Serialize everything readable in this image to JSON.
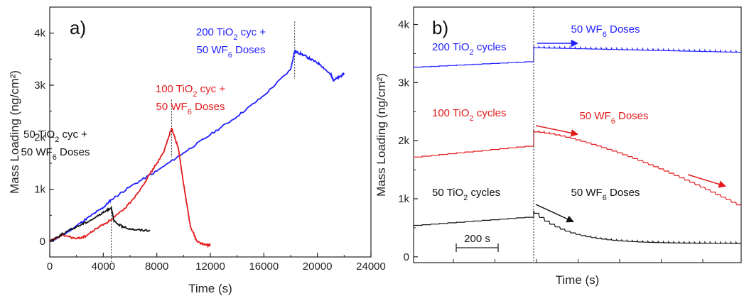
{
  "chart_data": [
    {
      "type": "line",
      "panel_label": "a)",
      "xlabel": "Time (s)",
      "ylabel": "Mass Loading (ng/cm²)",
      "xlim": [
        0,
        24000
      ],
      "ylim": [
        -300,
        4500
      ],
      "x_ticks": [
        0,
        4000,
        8000,
        12000,
        16000,
        20000,
        24000
      ],
      "x_tick_labels": [
        "0",
        "4000",
        "8000",
        "12000",
        "16000",
        "20000",
        "24000"
      ],
      "y_ticks": [
        0,
        1000,
        2000,
        3000,
        4000
      ],
      "y_tick_labels": [
        "0",
        "1k",
        "2k",
        "3k",
        "4k"
      ],
      "series": [
        {
          "color": "#1f1fff",
          "x": [
            0,
            1000,
            2000,
            3000,
            4000,
            4600,
            6000,
            8000,
            10000,
            12000,
            14000,
            16000,
            18000,
            18300,
            18800,
            19500,
            20200,
            21000,
            21200,
            21600,
            22000
          ],
          "y": [
            0,
            120,
            300,
            480,
            650,
            800,
            1050,
            1350,
            1700,
            2050,
            2400,
            2800,
            3300,
            3650,
            3600,
            3500,
            3400,
            3200,
            3100,
            3150,
            3220
          ]
        },
        {
          "color": "#e31a1c",
          "x": [
            0,
            1000,
            2000,
            2700,
            3500,
            4500,
            5500,
            6500,
            7500,
            8500,
            9100,
            9600,
            10000,
            10500,
            11000,
            11500,
            12000
          ],
          "y": [
            0,
            120,
            50,
            100,
            250,
            400,
            600,
            900,
            1300,
            1700,
            2180,
            1800,
            1100,
            300,
            0,
            -60,
            -80
          ]
        },
        {
          "color": "#111111",
          "x": [
            0,
            1000,
            2000,
            3000,
            4000,
            4600,
            4800,
            5500,
            6500,
            7500
          ],
          "y": [
            0,
            150,
            280,
            400,
            550,
            650,
            380,
            270,
            220,
            210
          ]
        }
      ],
      "vlines": [
        4600,
        9100,
        18300
      ],
      "annotations": [
        {
          "lines": [
            "200 TiO₂ cyc +",
            "50 WF₆ Doses"
          ],
          "color": "#1f1fff"
        },
        {
          "lines": [
            "100 TiO₂ cyc +",
            "50 WF₆ Doses"
          ],
          "color": "#e31a1c"
        },
        {
          "lines": [
            "50 TiO₂ cyc +",
            "50 WF₆ Doses"
          ],
          "color": "#111111"
        }
      ]
    },
    {
      "type": "line",
      "panel_label": "b)",
      "xlabel": "Time (s)",
      "ylabel": "Mass Loading (ng/cm²)",
      "ylim": [
        -100,
        4300
      ],
      "y_ticks": [
        0,
        1000,
        2000,
        3000,
        4000
      ],
      "y_tick_labels": [
        "0",
        "1k",
        "2k",
        "3k",
        "4k"
      ],
      "x_range_relative_s": [
        -1000,
        2500
      ],
      "scale_bar": {
        "label": "200 s",
        "length_s": 200
      },
      "series": [
        {
          "color": "#1f1fff",
          "pre": {
            "start": 3250,
            "end": 3350,
            "steps": 14,
            "step_height": 45
          },
          "post": {
            "start": 3600,
            "end": 3520,
            "steps": 40,
            "step_height": 30
          }
        },
        {
          "color": "#e31a1c",
          "pre": {
            "start": 1700,
            "end": 1900,
            "steps": 14,
            "step_height": 55
          },
          "post": {
            "start": 2150,
            "end": 850,
            "steps": 40,
            "step_height": 40
          }
        },
        {
          "color": "#111111",
          "pre": {
            "start": 530,
            "end": 680,
            "steps": 14,
            "step_height": 35
          },
          "post": {
            "start": 750,
            "end": 230,
            "steps": 40,
            "step_height": 25
          }
        }
      ],
      "annotations": [
        {
          "text": "200 TiO₂ cycles",
          "color": "#1f1fff"
        },
        {
          "text": "50 WF₆ Doses",
          "color": "#1f1fff"
        },
        {
          "text": "100 TiO₂ cycles",
          "color": "#e31a1c"
        },
        {
          "text": "50 WF₆ Doses",
          "color": "#e31a1c"
        },
        {
          "text": "50 TiO₂ cycles",
          "color": "#111111"
        },
        {
          "text": "50 WF₆ Doses",
          "color": "#111111"
        }
      ]
    }
  ]
}
